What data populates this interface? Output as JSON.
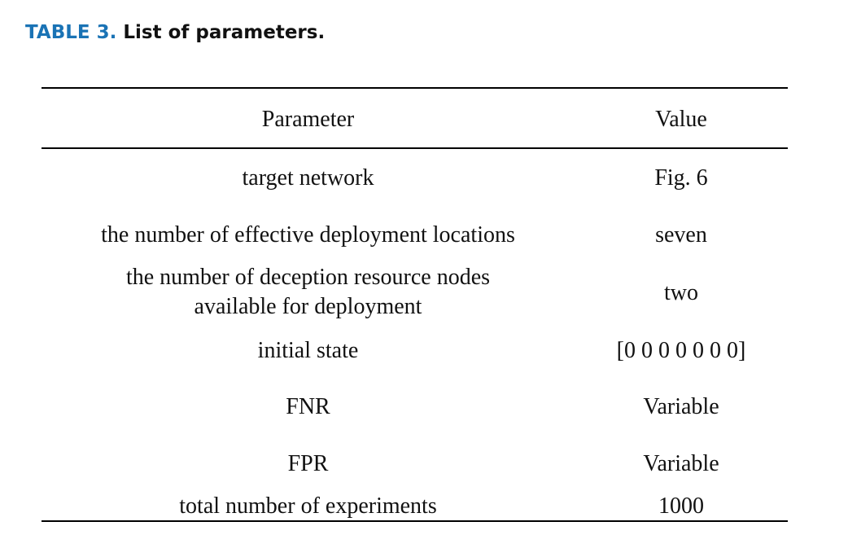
{
  "caption": {
    "label": "TABLE 3.",
    "title": "List of parameters."
  },
  "table": {
    "headers": {
      "parameter": "Parameter",
      "value": "Value"
    },
    "rows": [
      {
        "parameter": "target network",
        "value": "Fig. 6"
      },
      {
        "parameter": "the number of effective deployment locations",
        "value": "seven"
      },
      {
        "parameter_line1": "the number of deception resource nodes",
        "parameter_line2": "available for deployment",
        "value": "two"
      },
      {
        "parameter": "initial state",
        "value": "[0 0 0 0 0 0 0]"
      },
      {
        "parameter": "FNR",
        "value": "Variable"
      },
      {
        "parameter": "FPR",
        "value": "Variable"
      },
      {
        "parameter": "total number of experiments",
        "value": "1000"
      }
    ]
  }
}
